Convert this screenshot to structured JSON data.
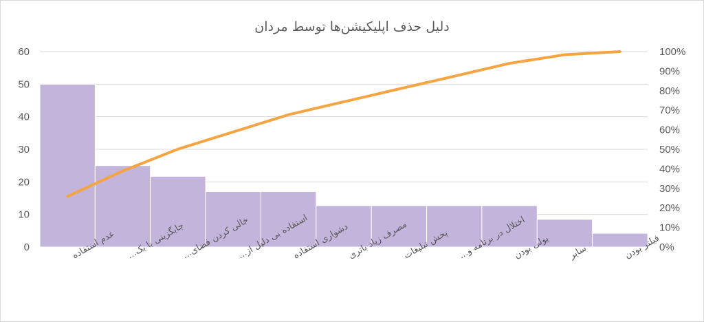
{
  "chart_data": {
    "type": "bar",
    "title": "دلیل حذف اپلیکیشن‌ها توسط مردان",
    "categories": [
      "عدم استفاده",
      "جایگزینی با یک...",
      "خالی کردن فضای...",
      "استفاده بی دلیل از...",
      "دشواری استفاده",
      "مصرف زیاد باتری",
      "پخش تبلیغات",
      "اختلال در برنامه و...",
      "پولی بودن",
      "سایر",
      "فیلتر بودن"
    ],
    "series": [
      {
        "type": "bar",
        "values": [
          50,
          25,
          21.7,
          17,
          17,
          12.7,
          12.7,
          12.7,
          12.7,
          8.5,
          4.2
        ],
        "color": "#c3b4dc"
      },
      {
        "type": "line",
        "axis": "secondary",
        "values": [
          25.9,
          38.9,
          50.1,
          58.9,
          67.7,
          74.3,
          80.9,
          87.4,
          94.0,
          98.4,
          100
        ],
        "color": "#f4a442"
      }
    ],
    "y_ticks": [
      "0",
      "10",
      "20",
      "30",
      "40",
      "50",
      "60"
    ],
    "y2_ticks": [
      "0%",
      "10%",
      "20%",
      "30%",
      "40%",
      "50%",
      "60%",
      "70%",
      "80%",
      "90%",
      "100%"
    ],
    "ylim": [
      0,
      60
    ],
    "y2lim": [
      0,
      100
    ],
    "grid": true,
    "legend": "none"
  }
}
